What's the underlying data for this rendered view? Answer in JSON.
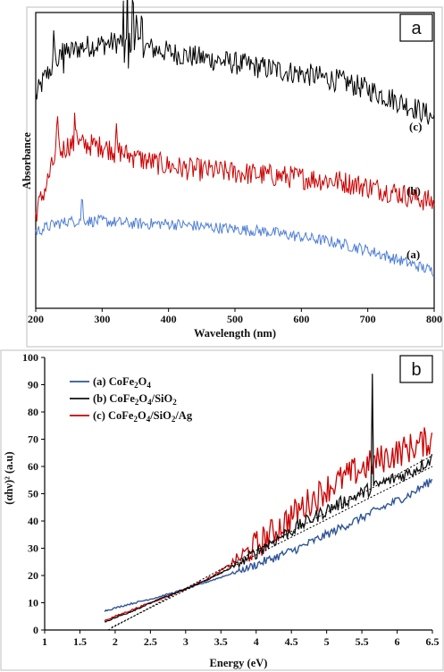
{
  "chart_data": [
    {
      "type": "line",
      "panel_label": "a",
      "xlabel": "Wavelength (nm)",
      "ylabel": "Absorbance",
      "xlim": [
        200,
        800
      ],
      "x_ticks": [
        "200",
        "300",
        "400",
        "500",
        "600",
        "700",
        "800"
      ],
      "y_ticks_shown": false,
      "grid": false,
      "legend": "none",
      "noise_amplitude": [
        2,
        2,
        1
      ],
      "curve_labels": [
        "(c)",
        "(b)",
        "(a)"
      ],
      "series": [
        {
          "label": "(c)",
          "color": "#000000",
          "x": [
            200,
            215,
            230,
            250,
            270,
            300,
            330,
            350,
            380,
            420,
            470,
            520,
            570,
            620,
            660,
            700,
            740,
            770,
            800
          ],
          "y": [
            0.8,
            0.88,
            0.93,
            0.97,
            0.99,
            1.0,
            1.01,
            1.0,
            0.98,
            0.96,
            0.94,
            0.92,
            0.9,
            0.88,
            0.86,
            0.83,
            0.79,
            0.76,
            0.72
          ],
          "spikes": [
            {
              "x": 228,
              "dy": 0.1
            },
            {
              "x": 242,
              "dy": 0.06
            },
            {
              "x": 333,
              "dy": 0.13
            },
            {
              "x": 339,
              "dy": 0.19
            },
            {
              "x": 346,
              "dy": 0.17
            },
            {
              "x": 352,
              "dy": 0.12
            },
            {
              "x": 360,
              "dy": 0.07
            }
          ]
        },
        {
          "label": "(b)",
          "color": "#cc0000",
          "x": [
            200,
            215,
            230,
            250,
            280,
            320,
            350,
            380,
            420,
            470,
            520,
            570,
            620,
            660,
            700,
            740,
            770,
            800
          ],
          "y": [
            0.36,
            0.46,
            0.58,
            0.62,
            0.62,
            0.6,
            0.57,
            0.55,
            0.53,
            0.52,
            0.51,
            0.5,
            0.49,
            0.48,
            0.46,
            0.44,
            0.42,
            0.4
          ],
          "spikes": [
            {
              "x": 233,
              "dy": 0.1
            },
            {
              "x": 260,
              "dy": 0.08
            },
            {
              "x": 300,
              "dy": 0.05
            },
            {
              "x": 320,
              "dy": 0.06
            },
            {
              "x": 350,
              "dy": 0.04
            }
          ]
        },
        {
          "label": "(a)",
          "color": "#4f7fd6",
          "x": [
            200,
            230,
            260,
            270,
            280,
            300,
            350,
            400,
            450,
            500,
            550,
            600,
            650,
            700,
            750,
            800
          ],
          "y": [
            0.29,
            0.32,
            0.33,
            0.34,
            0.33,
            0.33,
            0.32,
            0.32,
            0.31,
            0.3,
            0.29,
            0.27,
            0.25,
            0.22,
            0.18,
            0.14
          ],
          "spikes": [
            {
              "x": 270,
              "dy": 0.08
            },
            {
              "x": 250,
              "dy": 0.03
            }
          ]
        }
      ]
    },
    {
      "type": "line",
      "panel_label": "b",
      "xlabel": "Energy (eV)",
      "ylabel": "(αhν)² (a.u)",
      "xlim": [
        1,
        6.5
      ],
      "ylim": [
        0,
        100
      ],
      "x_ticks": [
        "1",
        "1.5",
        "2",
        "2.5",
        "3",
        "3.5",
        "4",
        "4.5",
        "5",
        "5.5",
        "6",
        "6.5"
      ],
      "y_ticks": [
        "0",
        "10",
        "20",
        "30",
        "40",
        "50",
        "60",
        "70",
        "80",
        "90",
        "100"
      ],
      "grid": false,
      "legend": "top-left",
      "legend_entries": [
        {
          "base": "(a) CoFe",
          "sub1": "2",
          "mid": "O",
          "sub2": "4",
          "tail": ""
        },
        {
          "base": "(b) CoFe",
          "sub1": "2",
          "mid": "O",
          "sub2": "4",
          "tail": "/SiO",
          "sub3": "2"
        },
        {
          "base": "(c) CoFe",
          "sub1": "2",
          "mid": "O",
          "sub2": "4",
          "tail": "/SiO",
          "sub3": "2",
          "tail2": "/Ag"
        }
      ],
      "noise_amplitude": [
        1.6,
        2.5,
        3.5
      ],
      "noise_start": 3.55,
      "series": [
        {
          "color": "#2f5597",
          "x": [
            1.85,
            2.2,
            2.6,
            3.0,
            3.4,
            3.8,
            4.2,
            4.6,
            5.0,
            5.4,
            5.8,
            6.2,
            6.5
          ],
          "y": [
            7,
            9.5,
            12,
            15,
            18.5,
            22,
            26,
            30,
            35,
            40,
            45,
            50,
            55
          ]
        },
        {
          "color": "#111111",
          "x": [
            1.85,
            2.2,
            2.6,
            3.0,
            3.4,
            3.8,
            4.2,
            4.6,
            5.0,
            5.4,
            5.8,
            6.2,
            6.5
          ],
          "y": [
            3,
            6.5,
            11,
            15,
            19.5,
            25,
            32,
            38,
            44,
            49,
            54,
            58,
            63
          ]
        },
        {
          "color": "#cc0000",
          "x": [
            1.85,
            2.2,
            2.6,
            3.0,
            3.4,
            3.8,
            4.2,
            4.6,
            5.0,
            5.4,
            5.8,
            6.2,
            6.5
          ],
          "y": [
            3.5,
            7,
            11,
            15,
            20,
            27,
            35,
            44,
            52,
            58,
            63,
            67,
            70
          ]
        }
      ],
      "spike": {
        "series": 1,
        "x": 5.65,
        "y": 94
      },
      "fit_lines": [
        {
          "x": [
            1.9,
            6.5
          ],
          "y": [
            0,
            64
          ]
        },
        {
          "x": [
            1.95,
            6.5
          ],
          "y": [
            1,
            60
          ]
        }
      ]
    }
  ]
}
